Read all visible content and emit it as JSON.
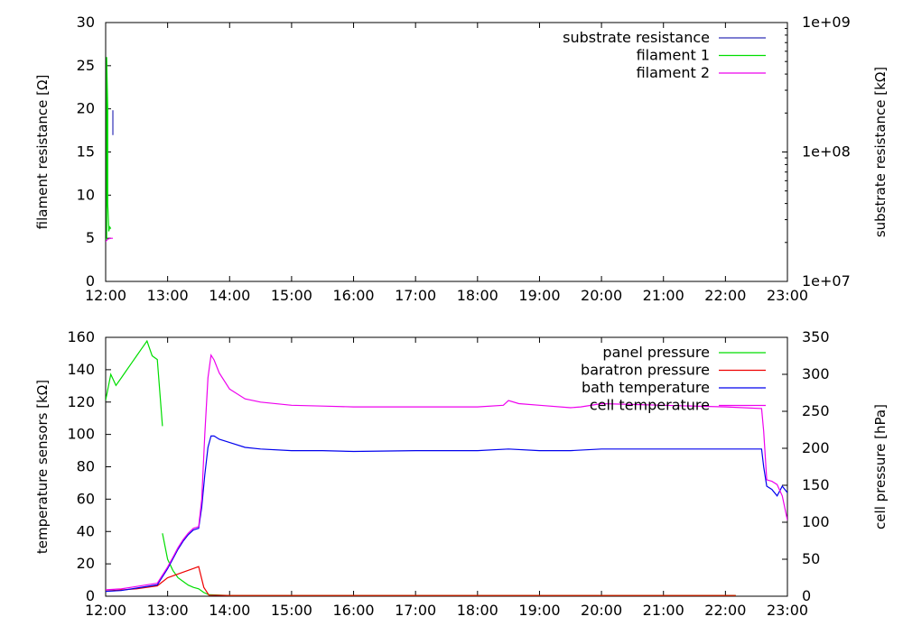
{
  "chart_data": [
    {
      "type": "line",
      "title": "",
      "xlabel": "",
      "ylabel": "filament resistance [Ω]",
      "y2label": "substrate resistance [kΩ]",
      "xlim": [
        "12:00",
        "23:00"
      ],
      "xticks": [
        "12:00",
        "13:00",
        "14:00",
        "15:00",
        "16:00",
        "17:00",
        "18:00",
        "19:00",
        "20:00",
        "21:00",
        "22:00",
        "23:00"
      ],
      "ylim": [
        0,
        30
      ],
      "yticks": [
        "0",
        "5",
        "10",
        "15",
        "20",
        "25",
        "30"
      ],
      "y2scale": "log",
      "y2lim": [
        10000000,
        1000000000
      ],
      "y2ticks": [
        "1e+07",
        "1e+08",
        "1e+09"
      ],
      "legend": "top-right",
      "series": [
        {
          "name": "substrate resistance",
          "axis": "y2",
          "color": "#3030b8",
          "x": [
            "12:07",
            "12:07",
            "12:07",
            "12:07"
          ],
          "y": [
            135000000,
            160000000,
            210000000,
            180000000
          ]
        },
        {
          "name": "filament 1",
          "axis": "y",
          "color": "#00dd00",
          "x": [
            "12:00",
            "12:01",
            "12:01",
            "12:02",
            "12:02",
            "12:03",
            "12:03",
            "12:04",
            "12:05"
          ],
          "y": [
            4.8,
            5.0,
            26.0,
            20.0,
            9.0,
            6.2,
            5.8,
            6.3,
            6.1
          ]
        },
        {
          "name": "filament 2",
          "axis": "y",
          "color": "#ee00ee",
          "x": [
            "12:00",
            "12:02",
            "12:05",
            "12:07"
          ],
          "y": [
            4.6,
            4.9,
            5.0,
            5.0
          ]
        }
      ]
    },
    {
      "type": "line",
      "title": "",
      "xlabel": "",
      "ylabel": "temperature sensors [kΩ]",
      "y2label": "cell pressure [hPa]",
      "xlim": [
        "12:00",
        "23:00"
      ],
      "xticks": [
        "12:00",
        "13:00",
        "14:00",
        "15:00",
        "16:00",
        "17:00",
        "18:00",
        "19:00",
        "20:00",
        "21:00",
        "22:00",
        "23:00"
      ],
      "ylim": [
        0,
        160
      ],
      "yticks": [
        "0",
        "20",
        "40",
        "60",
        "80",
        "100",
        "120",
        "140",
        "160"
      ],
      "y2lim": [
        0,
        350
      ],
      "y2ticks": [
        "0",
        "50",
        "100",
        "150",
        "200",
        "250",
        "300",
        "350"
      ],
      "legend": "top-right",
      "series": [
        {
          "name": "panel pressure",
          "axis": "y2",
          "color": "#00dd00",
          "x": [
            "12:00",
            "12:05",
            "12:10",
            "12:15",
            "12:20",
            "12:25",
            "12:30",
            "12:35",
            "12:40",
            "12:45",
            "12:50",
            "12:55",
            null,
            "12:55",
            "13:00",
            "13:05",
            "13:10",
            "13:15",
            "13:20",
            "13:25",
            "13:30",
            "13:35",
            "13:40",
            "14:00",
            "15:00",
            "16:00",
            "17:00",
            "18:00",
            "19:00",
            "20:00",
            "21:00",
            "22:00",
            "22:10"
          ],
          "y": [
            265,
            300,
            285,
            295,
            305,
            315,
            325,
            335,
            345,
            325,
            320,
            230,
            null,
            85,
            50,
            35,
            25,
            20,
            15,
            12,
            10,
            5,
            2,
            1,
            1,
            1,
            1,
            1,
            1,
            1,
            1,
            1,
            1
          ]
        },
        {
          "name": "baratron pressure",
          "axis": "y2",
          "color": "#ee0000",
          "x": [
            "12:00",
            "12:30",
            "12:50",
            "13:00",
            "13:20",
            "13:30",
            "13:35",
            "13:40",
            "14:00",
            "15:00",
            "16:00",
            "17:00",
            "18:00",
            "19:00",
            "20:00",
            "21:00",
            "22:00",
            "22:10"
          ],
          "y": [
            7,
            10,
            14,
            25,
            35,
            40,
            12,
            1.5,
            1,
            1,
            1,
            1,
            1,
            1,
            1,
            1,
            1,
            1
          ]
        },
        {
          "name": "bath temperature",
          "axis": "y",
          "color": "#0000ee",
          "x": [
            "12:00",
            "12:15",
            "12:30",
            "12:50",
            "13:00",
            "13:05",
            "13:10",
            "13:15",
            "13:20",
            "13:25",
            "13:30",
            "13:33",
            "13:36",
            "13:39",
            "13:42",
            "13:45",
            "13:50",
            "14:00",
            "14:15",
            "14:30",
            "15:00",
            "15:30",
            "16:00",
            "17:00",
            "18:00",
            "18:30",
            "19:00",
            "19:30",
            "20:00",
            "21:00",
            "22:00",
            "22:35",
            "22:37",
            "22:40",
            "22:45",
            "22:50",
            "22:55",
            "23:00"
          ],
          "y": [
            3,
            3.5,
            5,
            7,
            17,
            23,
            29,
            34,
            38,
            41,
            42,
            55,
            75,
            92,
            99,
            99,
            97,
            95,
            92,
            91,
            90,
            90,
            89.5,
            90,
            90,
            91,
            90,
            90,
            91,
            91,
            91,
            91,
            80,
            68,
            66,
            62,
            68,
            64
          ]
        },
        {
          "name": "cell temperature",
          "axis": "y",
          "color": "#ee00ee",
          "x": [
            "12:00",
            "12:15",
            "12:30",
            "12:50",
            "13:00",
            "13:05",
            "13:10",
            "13:15",
            "13:20",
            "13:25",
            "13:30",
            "13:33",
            "13:36",
            "13:39",
            "13:42",
            "13:45",
            "13:50",
            "14:00",
            "14:15",
            "14:30",
            "15:00",
            "15:30",
            "16:00",
            "17:00",
            "18:00",
            "18:25",
            "18:30",
            "18:40",
            "19:00",
            "19:30",
            "19:40",
            "20:00",
            "21:00",
            "22:00",
            "22:35",
            "22:37",
            "22:40",
            "22:45",
            "22:50",
            "22:55",
            "23:00"
          ],
          "y": [
            4,
            4.5,
            6,
            8,
            18,
            24,
            30,
            35,
            39,
            42,
            43,
            60,
            100,
            135,
            149,
            146,
            138,
            128,
            122,
            120,
            118,
            117.5,
            117,
            117,
            117,
            118,
            121,
            119,
            118,
            116.5,
            117,
            119,
            118,
            117,
            116,
            102,
            72,
            71,
            69,
            62,
            47
          ]
        }
      ]
    }
  ]
}
